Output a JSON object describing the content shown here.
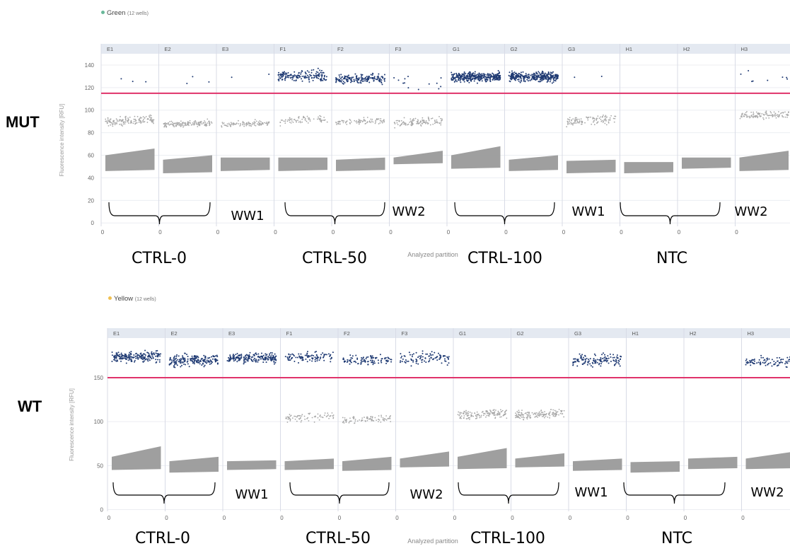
{
  "chart_data": [
    {
      "type": "scatter",
      "legend_label": "Green",
      "legend_count": "(12 wells)",
      "legend_color": "#69b89a",
      "row_label": "MUT",
      "ylabel": "Fluorescence intensity [RFU]",
      "xlabel": "Analyzed partition",
      "ylim": [
        -3,
        150
      ],
      "yticks": [
        0,
        20,
        40,
        60,
        80,
        100,
        120,
        140
      ],
      "threshold": 115,
      "threshold_color": "#e0336a",
      "positive_color": "#1f3a73",
      "negative_color": "#9a9a9a",
      "wells": [
        {
          "name": "E1",
          "pos": [
            125,
            140
          ],
          "pos_density": 0.02,
          "mid": [
            82,
            97
          ],
          "mid_density": 1,
          "neg": [
            46,
            60,
            66
          ],
          "x_tick": "0"
        },
        {
          "name": "E2",
          "pos": [
            123,
            130
          ],
          "pos_density": 0.02,
          "mid": [
            82,
            92
          ],
          "mid_density": 1,
          "neg": [
            44,
            56,
            60
          ],
          "x_tick": "0"
        },
        {
          "name": "E3",
          "pos": [
            125,
            132
          ],
          "pos_density": 0.01,
          "mid": [
            82,
            92
          ],
          "mid_density": 0.7,
          "neg": [
            46,
            58,
            58
          ],
          "x_tick": "0"
        },
        {
          "name": "F1",
          "pos": [
            120,
            140
          ],
          "pos_density": 1,
          "mid": [
            84,
            97
          ],
          "mid_density": 0.5,
          "neg": [
            46,
            58,
            58
          ],
          "x_tick": "0"
        },
        {
          "name": "F2",
          "pos": [
            120,
            135
          ],
          "pos_density": 1,
          "mid": [
            84,
            94
          ],
          "mid_density": 0.6,
          "neg": [
            46,
            56,
            58
          ],
          "x_tick": "0"
        },
        {
          "name": "F3",
          "pos": [
            118,
            130
          ],
          "pos_density": 0.08,
          "mid": [
            82,
            95
          ],
          "mid_density": 0.8,
          "neg": [
            52,
            58,
            64
          ],
          "x_tick": "0"
        },
        {
          "name": "G1",
          "pos": [
            122,
            137
          ],
          "pos_density": 2,
          "mid": [],
          "mid_density": 0,
          "neg": [
            48,
            60,
            68
          ],
          "x_tick": "0"
        },
        {
          "name": "G2",
          "pos": [
            122,
            137
          ],
          "pos_density": 2,
          "mid": [],
          "mid_density": 0,
          "neg": [
            46,
            56,
            60
          ],
          "x_tick": "0"
        },
        {
          "name": "G3",
          "pos": [
            128,
            131
          ],
          "pos_density": 0.01,
          "mid": [
            83,
            97
          ],
          "mid_density": 0.8,
          "neg": [
            44,
            55,
            56
          ],
          "x_tick": "0"
        },
        {
          "name": "H1",
          "pos": [],
          "pos_density": 0,
          "mid": [],
          "mid_density": 0,
          "neg": [
            44,
            54,
            54
          ],
          "x_tick": "0"
        },
        {
          "name": "H2",
          "pos": [],
          "pos_density": 0,
          "mid": [],
          "mid_density": 0,
          "neg": [
            48,
            58,
            58
          ],
          "x_tick": "0"
        },
        {
          "name": "H3",
          "pos": [
            118,
            135
          ],
          "pos_density": 0.05,
          "mid": [
            88,
            101
          ],
          "mid_density": 0.8,
          "neg": [
            46,
            58,
            64
          ],
          "x_tick": "0"
        }
      ],
      "annotations": [
        "CTRL-0",
        "WW1",
        "CTRL-50",
        "WW2",
        "CTRL-100",
        "WW1",
        "NTC",
        "WW2"
      ]
    },
    {
      "type": "scatter",
      "legend_label": "Yellow",
      "legend_count": "(12 wells)",
      "legend_color": "#f0c050",
      "row_label": "WT",
      "ylabel": "Fluorescence intensity [RFU]",
      "xlabel": "Analyzed partition",
      "ylim": [
        -2,
        195
      ],
      "yticks": [
        0,
        50,
        100,
        150
      ],
      "threshold": 150,
      "threshold_color": "#e0336a",
      "positive_color": "#1f3a73",
      "negative_color": "#9a9a9a",
      "wells": [
        {
          "name": "E1",
          "pos": [
            162,
            185
          ],
          "pos_density": 1.2,
          "mid": [],
          "mid_density": 0,
          "neg": [
            45,
            60,
            72
          ],
          "x_tick": "0"
        },
        {
          "name": "E2",
          "pos": [
            158,
            182
          ],
          "pos_density": 1.2,
          "mid": [],
          "mid_density": 0,
          "neg": [
            42,
            55,
            60
          ],
          "x_tick": "0"
        },
        {
          "name": "E3",
          "pos": [
            163,
            182
          ],
          "pos_density": 1.2,
          "mid": [],
          "mid_density": 0,
          "neg": [
            45,
            55,
            56
          ],
          "x_tick": "0"
        },
        {
          "name": "F1",
          "pos": [
            163,
            184
          ],
          "pos_density": 0.6,
          "mid": [
            95,
            112
          ],
          "mid_density": 0.5,
          "neg": [
            45,
            55,
            58
          ],
          "x_tick": "0"
        },
        {
          "name": "F2",
          "pos": [
            160,
            180
          ],
          "pos_density": 0.6,
          "mid": [
            93,
            110
          ],
          "mid_density": 0.6,
          "neg": [
            44,
            55,
            60
          ],
          "x_tick": "0"
        },
        {
          "name": "F3",
          "pos": [
            160,
            183
          ],
          "pos_density": 0.6,
          "mid": [],
          "mid_density": 0,
          "neg": [
            48,
            58,
            66
          ],
          "x_tick": "0"
        },
        {
          "name": "G1",
          "pos": [],
          "pos_density": 0,
          "mid": [
            98,
            116
          ],
          "mid_density": 1,
          "neg": [
            46,
            60,
            70
          ],
          "x_tick": "0"
        },
        {
          "name": "G2",
          "pos": [],
          "pos_density": 0,
          "mid": [
            98,
            116
          ],
          "mid_density": 1,
          "neg": [
            48,
            58,
            64
          ],
          "x_tick": "0"
        },
        {
          "name": "G3",
          "pos": [
            158,
            182
          ],
          "pos_density": 0.8,
          "mid": [],
          "mid_density": 0,
          "neg": [
            44,
            55,
            58
          ],
          "x_tick": "0"
        },
        {
          "name": "H1",
          "pos": [],
          "pos_density": 0,
          "mid": [],
          "mid_density": 0,
          "neg": [
            42,
            54,
            55
          ],
          "x_tick": "0"
        },
        {
          "name": "H2",
          "pos": [],
          "pos_density": 0,
          "mid": [],
          "mid_density": 0,
          "neg": [
            46,
            58,
            60
          ],
          "x_tick": "0"
        },
        {
          "name": "H3",
          "pos": [
            158,
            178
          ],
          "pos_density": 0.6,
          "mid": [],
          "mid_density": 0,
          "neg": [
            46,
            58,
            66
          ],
          "x_tick": "0"
        }
      ],
      "annotations": [
        "CTRL-0",
        "WW1",
        "CTRL-50",
        "WW2",
        "CTRL-100",
        "WW1",
        "NTC",
        "WW2"
      ]
    }
  ]
}
